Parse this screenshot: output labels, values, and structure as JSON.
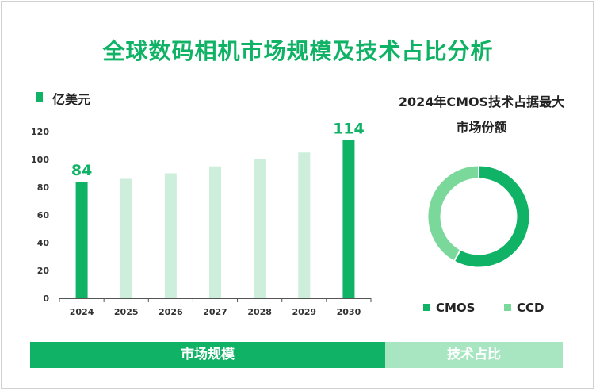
{
  "title": "全球数码相机市场规模及技术占比分析",
  "tabs": {
    "left": "市场规模",
    "right": "技术占比"
  },
  "colors": {
    "accent": "#10b266",
    "light": "#cdeedb",
    "pie_light": "#7bd89b"
  },
  "chart_data": [
    {
      "type": "bar",
      "unit_label": "亿美元",
      "categories": [
        "2024",
        "2025",
        "2026",
        "2027",
        "2028",
        "2029",
        "2030"
      ],
      "values": [
        84,
        86,
        90,
        95,
        100,
        105,
        114
      ],
      "highlight": [
        true,
        false,
        false,
        false,
        false,
        false,
        true
      ],
      "data_labels": {
        "0": "84",
        "6": "114"
      },
      "yticks": [
        0,
        20,
        40,
        60,
        80,
        100,
        120
      ],
      "ylim": [
        0,
        120
      ],
      "grid": false
    },
    {
      "type": "pie",
      "style": "donut",
      "title": "2024年CMOS技术占据最大市场份额",
      "slices": [
        {
          "name": "CMOS",
          "value": 58,
          "color": "#10b266"
        },
        {
          "name": "CCD",
          "value": 42,
          "color": "#7bd89b"
        }
      ],
      "legend": "bottom"
    }
  ]
}
